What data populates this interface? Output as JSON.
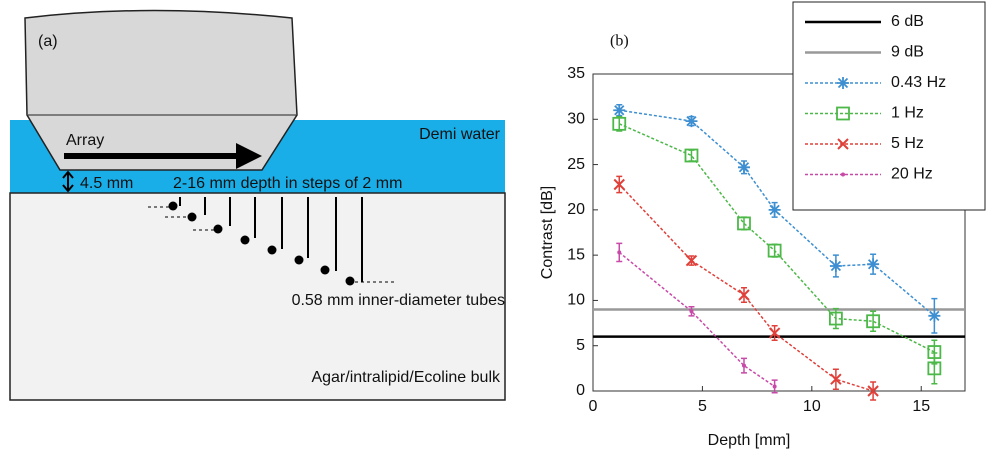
{
  "diagram": {
    "panel_label": "(a)",
    "array_label": "Array",
    "water_label": "Demi water",
    "gap_label": "4.5 mm",
    "depth_label": "2-16 mm depth in steps of 2 mm",
    "tube_label": "0.58 mm inner-diameter tubes",
    "bulk_label": "Agar/intralipid/Ecoline bulk"
  },
  "chart_data": {
    "type": "line",
    "panel_label": "(b)",
    "x_label": "Depth [mm]",
    "y_label": "Contrast [dB]",
    "xlim": [
      0,
      17
    ],
    "ylim": [
      0,
      35
    ],
    "xticks": [
      0,
      5,
      10,
      15
    ],
    "yticks": [
      0,
      5,
      10,
      15,
      20,
      25,
      30,
      35
    ],
    "legend": "upper-right",
    "series": [
      {
        "name": "6 dB",
        "color": "#000000",
        "linestyle": "solid",
        "marker": "none",
        "x": [
          0,
          17
        ],
        "values": [
          6,
          6
        ]
      },
      {
        "name": "9 dB",
        "color": "#999999",
        "linestyle": "solid",
        "marker": "none",
        "x": [
          0,
          17
        ],
        "values": [
          9,
          9
        ]
      },
      {
        "name": "0.43 Hz",
        "color": "#3d8fd1",
        "linestyle": "dashed",
        "marker": "star",
        "x": [
          1.2,
          4.5,
          6.9,
          8.3,
          11.1,
          12.8,
          15.6
        ],
        "values": [
          31,
          29.8,
          24.7,
          20,
          13.8,
          14,
          8.3
        ],
        "errors": [
          0.6,
          0.5,
          0.7,
          0.8,
          1.2,
          1.1,
          1.9
        ]
      },
      {
        "name": "1 Hz",
        "color": "#4cb848",
        "linestyle": "dashed",
        "marker": "square",
        "x": [
          1.2,
          4.5,
          6.9,
          8.3,
          11.1,
          12.8,
          15.6,
          15.6
        ],
        "values": [
          29.5,
          26,
          18.5,
          15.5,
          8,
          7.7,
          4.3,
          2.5
        ],
        "errors": [
          0.8,
          0.6,
          0.7,
          0.7,
          1.1,
          1.1,
          1.3,
          1.7
        ]
      },
      {
        "name": "5 Hz",
        "color": "#e0403a",
        "linestyle": "dashed",
        "marker": "x",
        "x": [
          1.2,
          4.5,
          6.9,
          8.3,
          11.1,
          12.8
        ],
        "values": [
          22.8,
          14.4,
          10.6,
          6.4,
          1.3,
          0
        ],
        "errors": [
          0.9,
          0.5,
          0.8,
          0.8,
          1.1,
          1
        ]
      },
      {
        "name": "20 Hz",
        "color": "#c84aa8",
        "linestyle": "dashed",
        "marker": "dot",
        "x": [
          1.2,
          4.5,
          6.9,
          8.3
        ],
        "values": [
          15.3,
          8.8,
          2.8,
          0.5
        ],
        "errors": [
          1,
          0.5,
          0.8,
          0.7
        ]
      }
    ]
  }
}
